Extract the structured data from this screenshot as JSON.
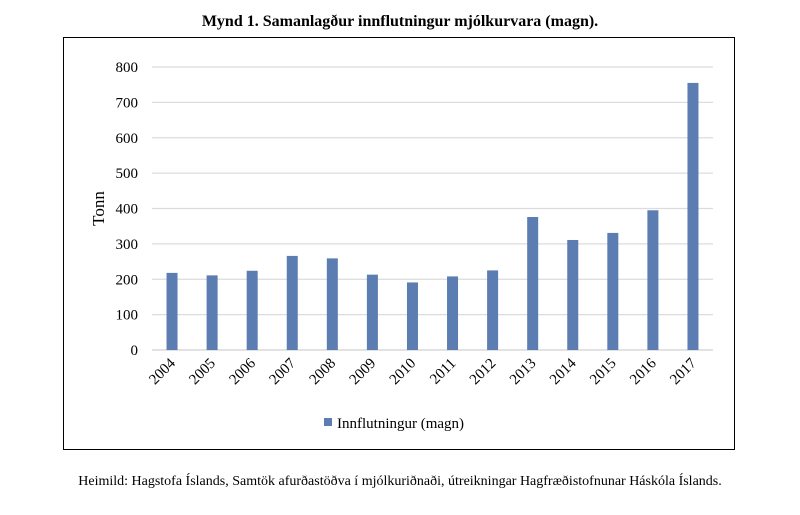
{
  "chart_data": {
    "type": "bar",
    "title": "Mynd 1. Samanlagður innflutningur mjólkurvara (magn).",
    "xlabel": "",
    "ylabel": "Tonn",
    "ylim": [
      0,
      800
    ],
    "yticks": [
      0,
      100,
      200,
      300,
      400,
      500,
      600,
      700,
      800
    ],
    "grid": true,
    "legend_position": "bottom",
    "categories": [
      "2004",
      "2005",
      "2006",
      "2007",
      "2008",
      "2009",
      "2010",
      "2011",
      "2012",
      "2013",
      "2014",
      "2015",
      "2016",
      "2017"
    ],
    "series": [
      {
        "name": "Innflutningur (magn)",
        "color": "#5b7db1",
        "values": [
          218,
          211,
          224,
          266,
          259,
          213,
          191,
          208,
          225,
          376,
          311,
          331,
          395,
          755
        ]
      }
    ]
  },
  "source": "Heimild: Hagstofa Íslands, Samtök afurðastöðva í mjólkuriðnaði, útreikningar Hagfræðistofnunar Háskóla Íslands."
}
